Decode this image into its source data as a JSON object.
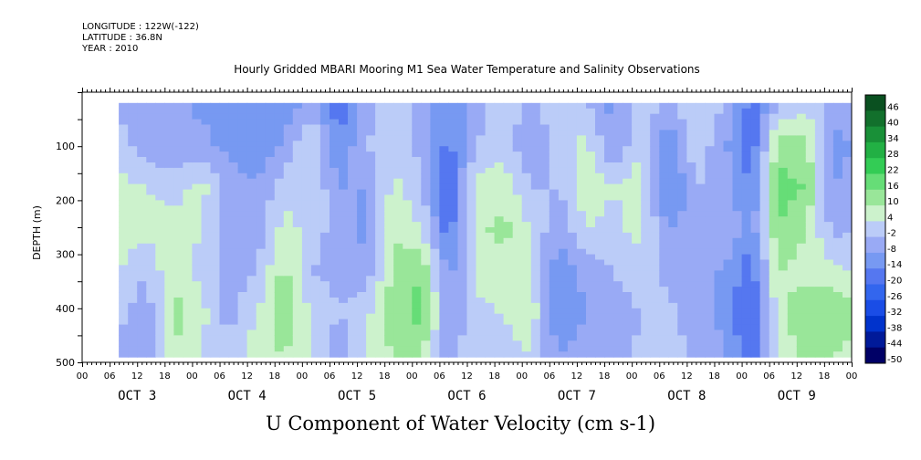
{
  "header": {
    "longitude": "LONGITUDE : 122W(-122)",
    "latitude": "LATITUDE : 36.8N",
    "year": "YEAR : 2010"
  },
  "chart_data": {
    "type": "heatmap",
    "title": "Hourly Gridded MBARI Mooring M1 Sea Water Temperature and Salinity Observations",
    "caption": "U Component of Water Velocity (cm s-1)",
    "ylabel": "DEPTH (m)",
    "xlabel": "",
    "y_range_m": [
      0,
      500
    ],
    "y_inverted": true,
    "y_ticks": [
      100,
      200,
      300,
      400,
      500
    ],
    "x_start_day": "OCT 2 2010 00:00",
    "x_hours_span": 168,
    "x_hour_labels": [
      "00",
      "06",
      "12",
      "18",
      "00",
      "06",
      "12",
      "18",
      "00",
      "06",
      "12",
      "18",
      "00",
      "06",
      "12",
      "18",
      "00",
      "06",
      "12",
      "18",
      "00",
      "06",
      "12",
      "18",
      "00",
      "06",
      "12",
      "18",
      "00"
    ],
    "x_day_labels": [
      "OCT 3",
      "OCT 4",
      "OCT 5",
      "OCT 6",
      "OCT 7",
      "OCT 8",
      "OCT 9"
    ],
    "data_start_hour": 8,
    "data_depth_range_m": [
      20,
      490
    ],
    "colorbar": {
      "levels": [
        -50,
        -44,
        -38,
        -32,
        -26,
        -20,
        -14,
        -8,
        -2,
        4,
        10,
        16,
        22,
        28,
        34,
        40,
        46
      ],
      "labels": [
        "46",
        "40",
        "34",
        "28",
        "22",
        "16",
        "10",
        "4",
        "-2",
        "-8",
        "-14",
        "-20",
        "-26",
        "-32",
        "-38",
        "-44",
        "-50"
      ],
      "colors": [
        "#000066",
        "#001a99",
        "#0033cc",
        "#1a4de6",
        "#3366ee",
        "#5577f0",
        "#7799f2",
        "#99aaf5",
        "#bbccf8",
        "#ccf2cc",
        "#99e699",
        "#66dd77",
        "#33cc55",
        "#22b044",
        "#199038",
        "#12702c",
        "#0a5020"
      ]
    },
    "columns": [
      {
        "h": 8,
        "v": [
          -4,
          2,
          6,
          8,
          4,
          0,
          -6
        ]
      },
      {
        "h": 14,
        "v": [
          -8,
          -6,
          4,
          6,
          -2,
          -6,
          -8
        ]
      },
      {
        "h": 20,
        "v": [
          -4,
          -8,
          2,
          6,
          10,
          12,
          10
        ]
      },
      {
        "h": 26,
        "v": [
          -10,
          -6,
          6,
          4,
          2,
          6,
          4
        ]
      },
      {
        "h": 32,
        "v": [
          -8,
          -10,
          -4,
          -8,
          -6,
          -4,
          -2
        ]
      },
      {
        "h": 38,
        "v": [
          -14,
          -12,
          -8,
          -6,
          -2,
          4,
          8
        ]
      },
      {
        "h": 44,
        "v": [
          -12,
          -8,
          2,
          6,
          12,
          14,
          10
        ]
      },
      {
        "h": 50,
        "v": [
          -6,
          6,
          4,
          2,
          -2,
          4,
          6
        ]
      },
      {
        "h": 56,
        "v": [
          -18,
          -14,
          -8,
          -6,
          -4,
          -2,
          -8
        ]
      },
      {
        "h": 62,
        "v": [
          -6,
          -2,
          -8,
          -10,
          -6,
          2,
          6
        ]
      },
      {
        "h": 68,
        "v": [
          6,
          2,
          6,
          10,
          12,
          14,
          10
        ]
      },
      {
        "h": 74,
        "v": [
          -6,
          -4,
          0,
          4,
          16,
          18,
          10
        ]
      },
      {
        "h": 80,
        "v": [
          -10,
          -16,
          -20,
          -18,
          -10,
          -8,
          -6
        ]
      },
      {
        "h": 86,
        "v": [
          -6,
          -2,
          6,
          8,
          6,
          2,
          4
        ]
      },
      {
        "h": 92,
        "v": [
          4,
          2,
          8,
          12,
          8,
          4,
          2
        ]
      },
      {
        "h": 98,
        "v": [
          -6,
          -8,
          -2,
          4,
          6,
          8,
          4
        ]
      },
      {
        "h": 104,
        "v": [
          4,
          2,
          -2,
          -8,
          -12,
          -14,
          -8
        ]
      },
      {
        "h": 110,
        "v": [
          -2,
          6,
          8,
          4,
          -6,
          -8,
          -4
        ]
      },
      {
        "h": 116,
        "v": [
          -10,
          -8,
          4,
          2,
          -2,
          -6,
          -8
        ]
      },
      {
        "h": 122,
        "v": [
          2,
          4,
          8,
          6,
          2,
          -2,
          0
        ]
      },
      {
        "h": 128,
        "v": [
          -4,
          -14,
          -16,
          -8,
          -4,
          0,
          2
        ]
      },
      {
        "h": 134,
        "v": [
          4,
          2,
          -2,
          -6,
          -8,
          -6,
          -4
        ]
      },
      {
        "h": 140,
        "v": [
          -2,
          -6,
          -4,
          -2,
          -8,
          -10,
          -6
        ]
      },
      {
        "h": 146,
        "v": [
          -16,
          -20,
          -14,
          -12,
          -18,
          -22,
          -18
        ]
      },
      {
        "h": 152,
        "v": [
          -4,
          14,
          18,
          16,
          10,
          8,
          6
        ]
      },
      {
        "h": 158,
        "v": [
          2,
          12,
          16,
          10,
          8,
          14,
          12
        ]
      },
      {
        "h": 164,
        "v": [
          -6,
          -10,
          -8,
          -4,
          6,
          16,
          10
        ]
      },
      {
        "h": 168,
        "v": [
          -4,
          -8,
          -6,
          -2,
          4,
          12,
          8
        ]
      }
    ]
  }
}
